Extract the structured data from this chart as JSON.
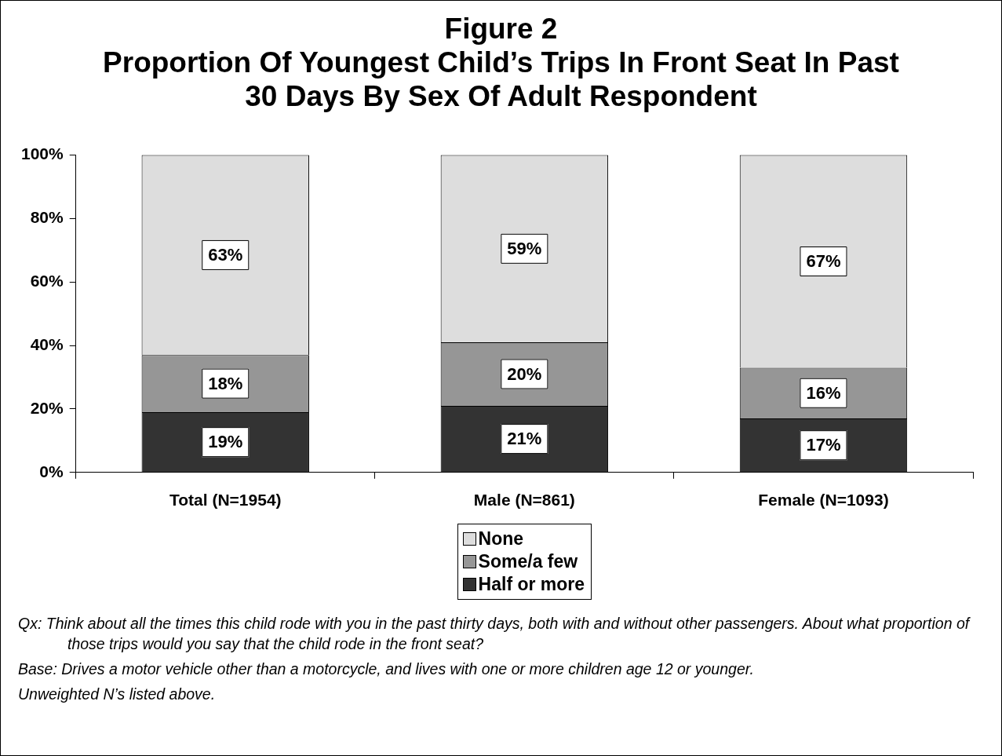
{
  "chart_data": {
    "type": "bar",
    "title": "Figure 2",
    "subtitle": "Proportion Of Youngest Child’s Trips In Front Seat In Past 30 Days By Sex Of Adult Respondent",
    "categories": [
      "Total (N=1954)",
      "Male (N=861)",
      "Female (N=1093)"
    ],
    "stacked": true,
    "series": [
      {
        "name": "Half or more",
        "color": "#333333",
        "values": [
          19,
          21,
          17
        ],
        "value_labels": [
          "19%",
          "21%",
          "17%"
        ]
      },
      {
        "name": "Some/a few",
        "color": "#969696",
        "values": [
          18,
          20,
          16
        ],
        "value_labels": [
          "18%",
          "20%",
          "16%"
        ]
      },
      {
        "name": "None",
        "color": "#dddddd",
        "values": [
          63,
          59,
          67
        ],
        "value_labels": [
          "63%",
          "59%",
          "67%"
        ]
      }
    ],
    "ylim": [
      0,
      100
    ],
    "yticks": [
      {
        "value": 0,
        "label": "0%"
      },
      {
        "value": 20,
        "label": "20%"
      },
      {
        "value": 40,
        "label": "40%"
      },
      {
        "value": 60,
        "label": "60%"
      },
      {
        "value": 80,
        "label": "80%"
      },
      {
        "value": 100,
        "label": "100%"
      }
    ],
    "grid": false,
    "legend": "bottom",
    "annotations": [
      "Qx:  Think about all the times this child rode with you in the past thirty days, both with and without other passengers.  About what proportion of those trips would you say that the child rode in the front seat?",
      "Base:  Drives a motor vehicle other than a motorcycle, and lives with one or more children age 12 or younger.",
      "Unweighted N’s listed above."
    ]
  }
}
